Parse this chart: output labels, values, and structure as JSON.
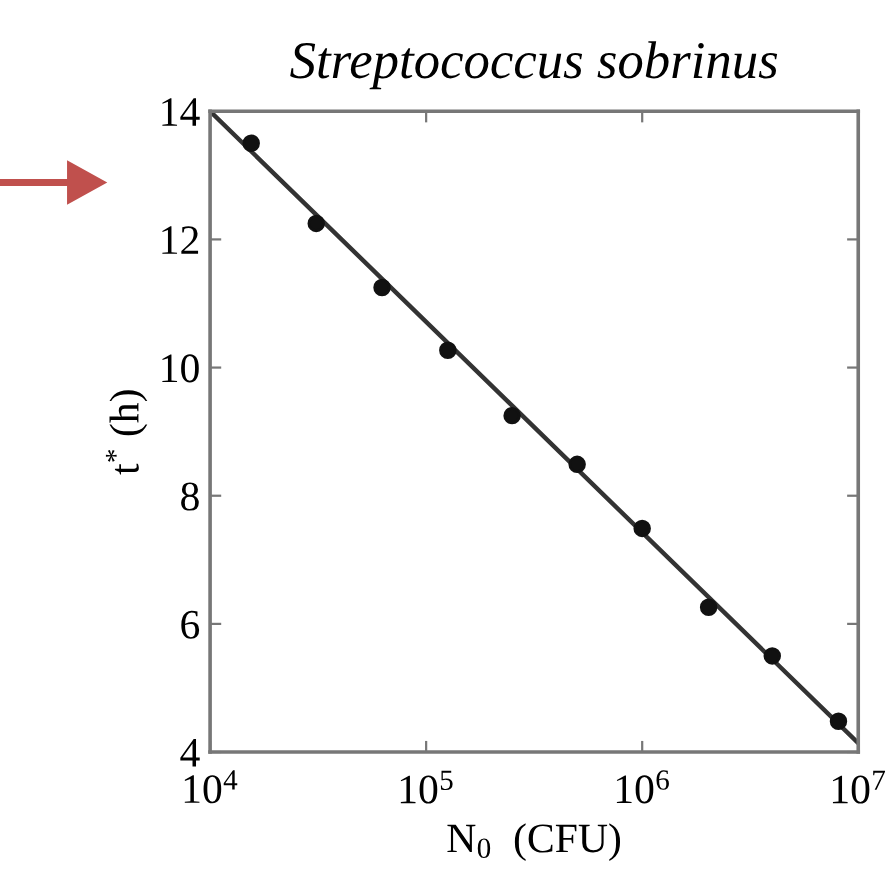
{
  "chart_data": {
    "type": "scatter",
    "title": "Streptococcus sobrinus",
    "xlabel": "N$_{0}$  (CFU)",
    "ylabel": "t$^{*}$ (h)",
    "log": "x",
    "xlim": [
      10000,
      10000000
    ],
    "ylim": [
      4,
      14
    ],
    "xticks": [
      {
        "value": 10000,
        "label": "10$^{4}$"
      },
      {
        "value": 100000,
        "label": "10$^{5}$"
      },
      {
        "value": 1000000,
        "label": "10$^{6}$"
      },
      {
        "value": 10000000,
        "label": "10$^{7}$"
      }
    ],
    "yticks": [
      4,
      6,
      8,
      10,
      12,
      14
    ],
    "grid": false,
    "series": [
      {
        "marker": "circle",
        "color": "#111111",
        "x": [
          15500,
          31000,
          62500,
          126000,
          250000,
          500000,
          1000000,
          2030000,
          4000000,
          8100000
        ],
        "values": [
          13.5,
          12.25,
          11.25,
          10.27,
          9.25,
          8.49,
          7.49,
          6.26,
          5.5,
          4.48
        ]
      },
      {
        "type": "line",
        "color": "#333333",
        "x": [
          10000,
          10000000
        ],
        "values": [
          14,
          4.14
        ],
        "line_style": "solid"
      }
    ]
  }
}
